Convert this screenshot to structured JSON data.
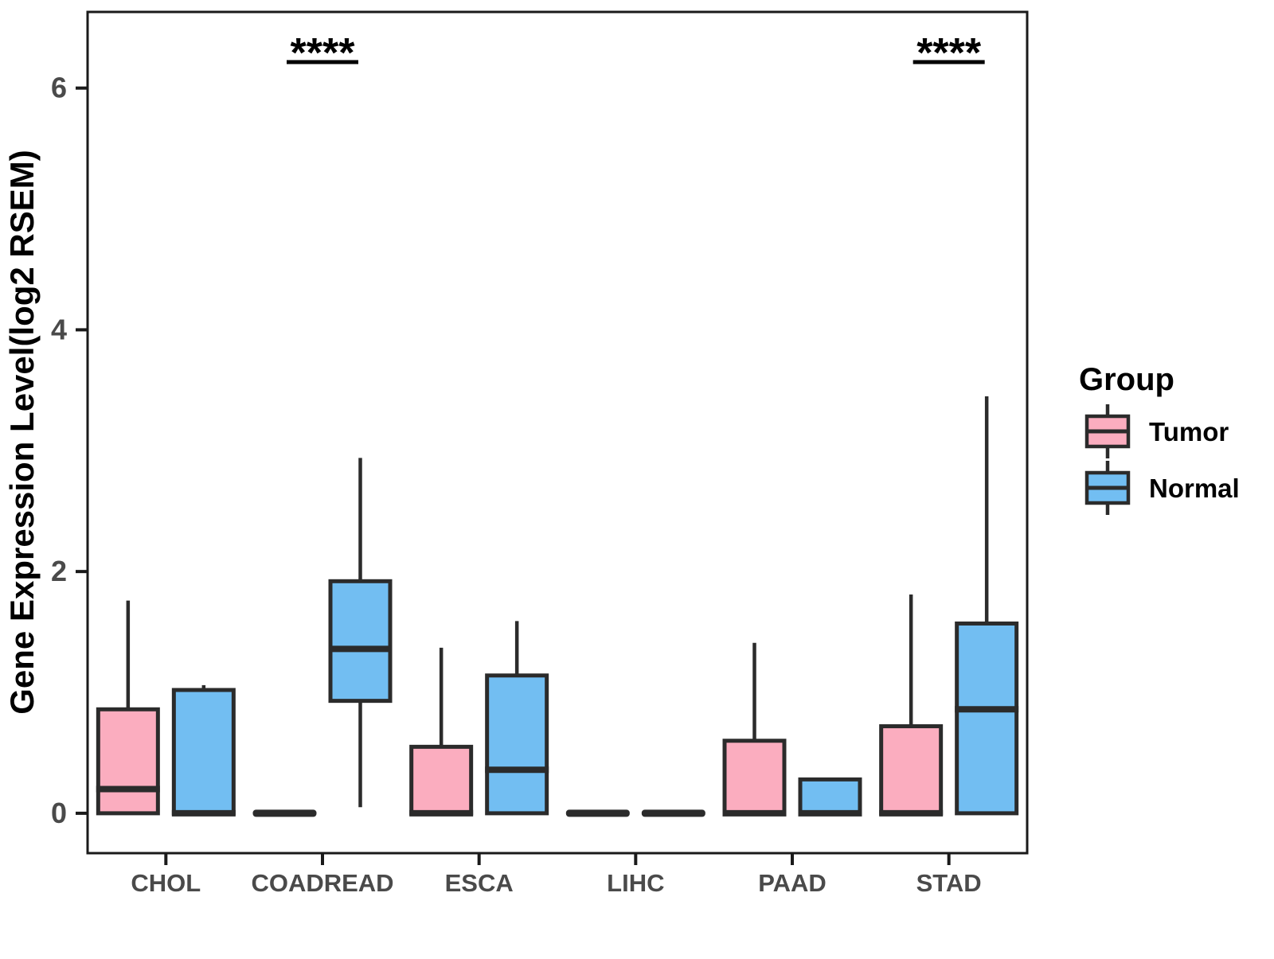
{
  "figure": {
    "background": "#ffffff"
  },
  "chart_data": {
    "type": "boxplot",
    "title": "",
    "xlabel": "",
    "ylabel": "Gene Expression Level(log2 RSEM)",
    "ylim": [
      -0.33,
      6.63
    ],
    "yticks": [
      0,
      2,
      4,
      6
    ],
    "grid": "off",
    "axis_text_color": "#4a4a4a",
    "axis_title_color": "#000000",
    "box_border_color": "#2b2b2b",
    "panel_border_color": "#1a1a1a",
    "categories": [
      "CHOL",
      "COADREAD",
      "ESCA",
      "LIHC",
      "PAAD",
      "STAD"
    ],
    "legend": {
      "title": "Group",
      "position": "right",
      "entries": [
        {
          "label": "Tumor",
          "color": "#FBADBF"
        },
        {
          "label": "Normal",
          "color": "#72BEF2"
        }
      ]
    },
    "series": [
      {
        "name": "Tumor",
        "color": "#FBADBF",
        "boxes": [
          {
            "category": "CHOL",
            "min": 0,
            "q1": 0,
            "median": 0.2,
            "q3": 0.86,
            "max": 1.76
          },
          {
            "category": "COADREAD",
            "min": 0,
            "q1": 0,
            "median": 0,
            "q3": 0,
            "max": 0
          },
          {
            "category": "ESCA",
            "min": 0,
            "q1": 0,
            "median": 0,
            "q3": 0.55,
            "max": 1.37
          },
          {
            "category": "LIHC",
            "min": 0,
            "q1": 0,
            "median": 0,
            "q3": 0,
            "max": 0
          },
          {
            "category": "PAAD",
            "min": 0,
            "q1": 0,
            "median": 0,
            "q3": 0.6,
            "max": 1.41
          },
          {
            "category": "STAD",
            "min": 0,
            "q1": 0,
            "median": 0,
            "q3": 0.72,
            "max": 1.81
          }
        ]
      },
      {
        "name": "Normal",
        "color": "#72BEF2",
        "boxes": [
          {
            "category": "CHOL",
            "min": 0,
            "q1": 0,
            "median": 0,
            "q3": 1.02,
            "max": 1.06
          },
          {
            "category": "COADREAD",
            "min": 0.05,
            "q1": 0.93,
            "median": 1.36,
            "q3": 1.92,
            "max": 2.94
          },
          {
            "category": "ESCA",
            "min": 0,
            "q1": 0,
            "median": 0.36,
            "q3": 1.14,
            "max": 1.59
          },
          {
            "category": "LIHC",
            "min": 0,
            "q1": 0,
            "median": 0,
            "q3": 0,
            "max": 0
          },
          {
            "category": "PAAD",
            "min": 0,
            "q1": 0,
            "median": 0,
            "q3": 0.28,
            "max": 0.28
          },
          {
            "category": "STAD",
            "min": 0,
            "q1": 0,
            "median": 0.86,
            "q3": 1.57,
            "max": 3.45
          }
        ]
      }
    ],
    "annotations": [
      {
        "category": "COADREAD",
        "label": "****"
      },
      {
        "category": "STAD",
        "label": "****"
      }
    ]
  }
}
